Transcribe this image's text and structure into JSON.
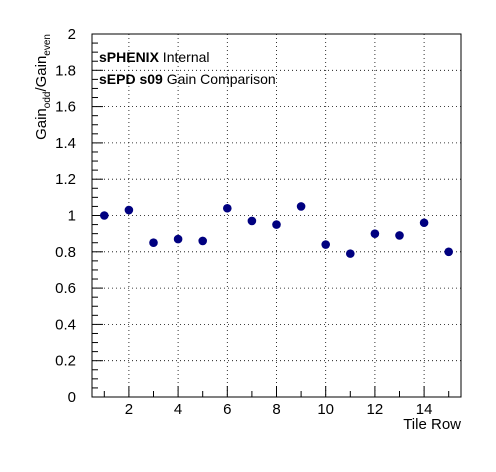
{
  "chart_data": {
    "type": "scatter",
    "title": "",
    "xlabel": "Tile Row",
    "ylabel_parts": {
      "base1": "Gain",
      "sub1": "odd",
      "sep": "/",
      "base2": "Gain",
      "sub2": "even"
    },
    "xlim": [
      0.5,
      15.5
    ],
    "ylim": [
      0,
      2
    ],
    "x_ticks": [
      2,
      4,
      6,
      8,
      10,
      12,
      14
    ],
    "y_ticks": [
      0,
      0.2,
      0.4,
      0.6,
      0.8,
      1,
      1.2,
      1.4,
      1.6,
      1.8,
      2
    ],
    "y_tick_labels": [
      "0",
      "0.2",
      "0.4",
      "0.6",
      "0.8",
      "1",
      "1.2",
      "1.4",
      "1.6",
      "1.8",
      "2"
    ],
    "grid": true,
    "marker_color": "#000080",
    "x": [
      1,
      2,
      3,
      4,
      5,
      6,
      7,
      8,
      9,
      10,
      11,
      12,
      13,
      14,
      15
    ],
    "y": [
      1.0,
      1.03,
      0.85,
      0.87,
      0.86,
      1.04,
      0.97,
      0.95,
      1.05,
      0.84,
      0.79,
      0.9,
      0.89,
      0.96,
      0.8
    ],
    "annotations": [
      {
        "bold": "sPHENIX",
        "normal": " Internal"
      },
      {
        "bold": "sEPD s09",
        "normal": " Gain Comparison"
      }
    ]
  }
}
